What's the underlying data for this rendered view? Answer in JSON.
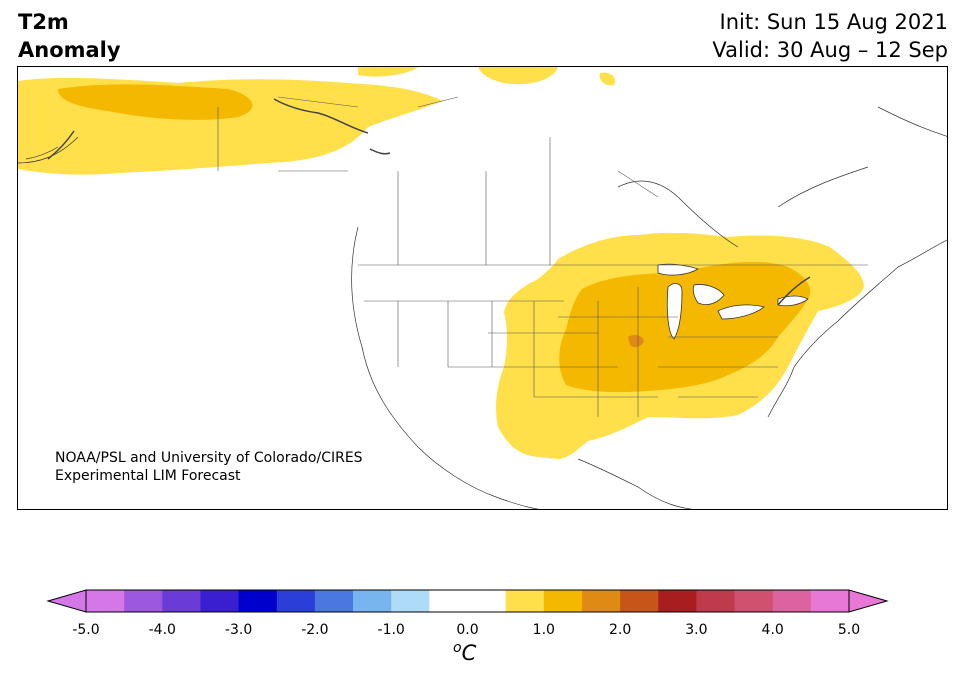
{
  "header": {
    "title_line1": "T2m",
    "title_line2": "Anomaly",
    "init": "Init: Sun 15 Aug 2021",
    "valid": "Valid: 30 Aug – 12 Sep"
  },
  "credit": {
    "line1": "NOAA/PSL and University of Colorado/CIRES",
    "line2": "Experimental LIM Forecast"
  },
  "colorbar": {
    "unit_super": "o",
    "unit": "C",
    "ticks": [
      "-5.0",
      "-4.0",
      "-3.0",
      "-2.0",
      "-1.0",
      "0.0",
      "1.0",
      "2.0",
      "3.0",
      "4.0",
      "5.0"
    ],
    "colors": [
      "#d478e8",
      "#9b59e0",
      "#6a3bd6",
      "#3a1fd0",
      "#0000cd",
      "#2b3fd8",
      "#4a78e0",
      "#78b4ee",
      "#aedcf8",
      "#ffffff",
      "#ffffff",
      "#ffe04a",
      "#f4b800",
      "#de8a14",
      "#c85518",
      "#a81e1e",
      "#bf3a4a",
      "#d05070",
      "#dc62a0",
      "#e878d6"
    ],
    "extend_min_color": "#d478e8",
    "extend_max_color": "#e878d6"
  },
  "legend_colors": {
    "anomaly_0_5_to_1": "#ffe04a",
    "anomaly_1_to_1_5": "#f4b800",
    "anomaly_1_5_to_2": "#de8a14"
  }
}
